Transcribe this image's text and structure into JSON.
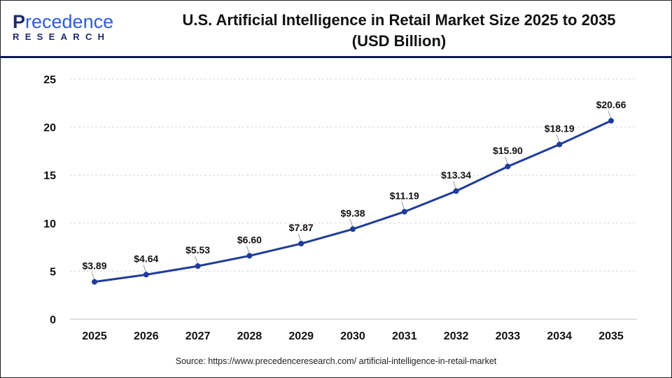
{
  "logo": {
    "line1_p": "P",
    "line1_rest": "recedence",
    "line2": "RESEARCH"
  },
  "title_line1": "U.S. Artificial Intelligence in Retail Market Size 2025 to 2035",
  "title_line2": "(USD Billion)",
  "source": "Source: https://www.precedenceresearch.com/ artificial-intelligence-in-retail-market",
  "colors": {
    "line": "#1f3c99",
    "header_rule": "#0f1c4d",
    "grid": "#d9d9d9"
  },
  "chart_data": {
    "type": "line",
    "title": "U.S. Artificial Intelligence in Retail Market Size 2025 to 2035 (USD Billion)",
    "x": [
      "2025",
      "2026",
      "2027",
      "2028",
      "2029",
      "2030",
      "2031",
      "2032",
      "2033",
      "2034",
      "2035"
    ],
    "values": [
      3.89,
      4.64,
      5.53,
      6.6,
      7.87,
      9.38,
      11.19,
      13.34,
      15.9,
      18.19,
      20.66
    ],
    "labels": [
      "$3.89",
      "$4.64",
      "$5.53",
      "$6.60",
      "$7.87",
      "$9.38",
      "$11.19",
      "$13.34",
      "$15.90",
      "$18.19",
      "$20.66"
    ],
    "yticks": [
      "0",
      "5",
      "10",
      "15",
      "20",
      "25"
    ],
    "ylim": [
      0,
      25
    ],
    "grid": "horizontal dashed",
    "xlabel": "",
    "ylabel": ""
  }
}
